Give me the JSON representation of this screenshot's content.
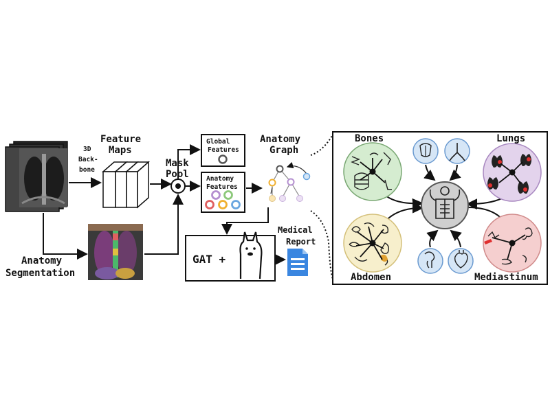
{
  "labels": {
    "backbone": [
      "3D",
      "Back-",
      "bone"
    ],
    "feature_maps": [
      "Feature",
      "Maps"
    ],
    "mask_pool": [
      "Mask",
      "Pool"
    ],
    "global_features": [
      "Global",
      "Features"
    ],
    "anatomy_features": [
      "Anatomy",
      "Features"
    ],
    "anatomy_graph": [
      "Anatomy",
      "Graph"
    ],
    "anatomy_segmentation": [
      "Anatomy",
      "Segmentation"
    ],
    "medical_report": [
      "Medical",
      "Report"
    ],
    "gat": "GAT +"
  },
  "groups": {
    "bones": "Bones",
    "lungs": "Lungs",
    "abdomen": "Abdomen",
    "mediastinum": "Mediastinum"
  },
  "colors": {
    "bones": "#d5ecd0",
    "lungs": "#e3d3ec",
    "abdomen": "#f7efcc",
    "mediastinum": "#f5cfcf",
    "small_nodes": "#d6e6f6",
    "center": "#cfcfcf",
    "feat_purple": "#b48fd0",
    "feat_green": "#8cc87a",
    "feat_red": "#e06060",
    "feat_orange": "#f0b030",
    "feat_blue": "#6aa6e0",
    "report": "#3a86e0"
  },
  "icons": {
    "llama": "llama-icon",
    "report": "document-icon",
    "center": "human-torso-icon"
  }
}
